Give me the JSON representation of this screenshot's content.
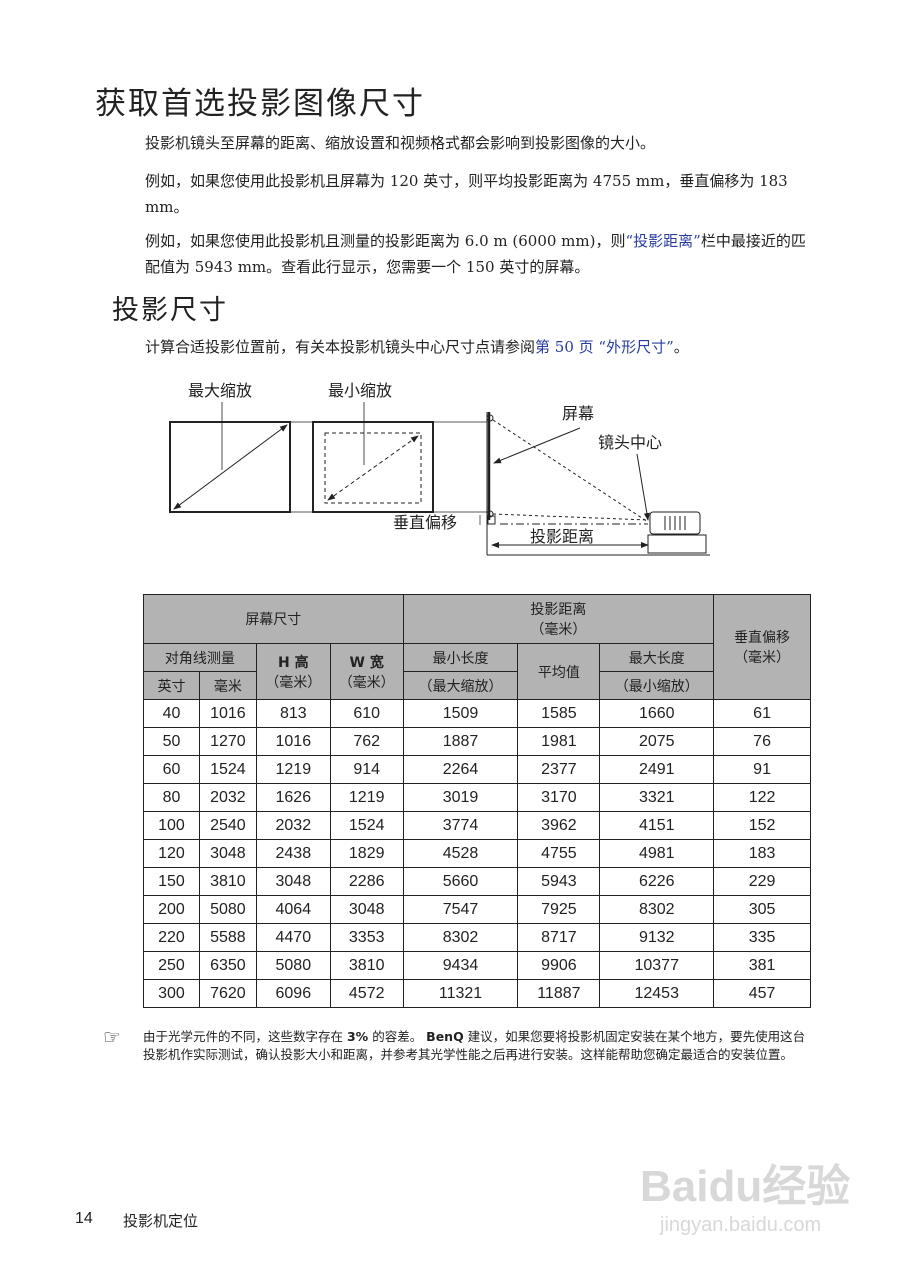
{
  "title": "获取首选投影图像尺寸",
  "paragraphs": [
    "投影机镜头至屏幕的距离、缩放设置和视频格式都会影响到投影图像的大小。",
    "例如，如果您使用此投影机且屏幕为 120 英寸，则平均投影距离为 4755 mm，垂直偏移为 183 mm。",
    "例如，如果您使用此投影机且测量的投影距离为 6.0 m (6000 mm)，则",
    "“投影距离”",
    "栏中最接近的匹配值为 5943 mm。查看此行显示，您需要一个 150 英寸的屏幕。"
  ],
  "section_title": "投影尺寸",
  "section_text": "计算合适投影位置前，有关本投影机镜头中心尺寸点请参阅",
  "section_link": "第 50 页 “外形尺寸”",
  "section_end": "。",
  "diagram": {
    "max_zoom": "最大缩放",
    "min_zoom": "最小缩放",
    "screen": "屏幕",
    "lens_center": "镜头中心",
    "vertical_offset": "垂直偏移",
    "projection_distance": "投影距离"
  },
  "table": {
    "h_screen": "屏幕尺寸",
    "h_proj": "投影距离",
    "h_proj_unit": "（毫米）",
    "h_offset": "垂直偏移",
    "h_offset_unit": "（毫米）",
    "h_diag": "对角线测量",
    "h_height": "H 高",
    "h_width": "W 宽",
    "h_mm": "（毫米）",
    "h_min": "最小长度",
    "h_avg": "平均值",
    "h_max": "最大长度",
    "h_inch": "英寸",
    "h_mm2": "毫米",
    "h_min_sub": "（最大缩放）",
    "h_max_sub": "（最小缩放）",
    "rows": [
      [
        "40",
        "1016",
        "813",
        "610",
        "1509",
        "1585",
        "1660",
        "61"
      ],
      [
        "50",
        "1270",
        "1016",
        "762",
        "1887",
        "1981",
        "2075",
        "76"
      ],
      [
        "60",
        "1524",
        "1219",
        "914",
        "2264",
        "2377",
        "2491",
        "91"
      ],
      [
        "80",
        "2032",
        "1626",
        "1219",
        "3019",
        "3170",
        "3321",
        "122"
      ],
      [
        "100",
        "2540",
        "2032",
        "1524",
        "3774",
        "3962",
        "4151",
        "152"
      ],
      [
        "120",
        "3048",
        "2438",
        "1829",
        "4528",
        "4755",
        "4981",
        "183"
      ],
      [
        "150",
        "3810",
        "3048",
        "2286",
        "5660",
        "5943",
        "6226",
        "229"
      ],
      [
        "200",
        "5080",
        "4064",
        "3048",
        "7547",
        "7925",
        "8302",
        "305"
      ],
      [
        "220",
        "5588",
        "4470",
        "3353",
        "8302",
        "8717",
        "9132",
        "335"
      ],
      [
        "250",
        "6350",
        "5080",
        "3810",
        "9434",
        "9906",
        "10377",
        "381"
      ],
      [
        "300",
        "7620",
        "6096",
        "4572",
        "11321",
        "11887",
        "12453",
        "457"
      ]
    ]
  },
  "note": {
    "a": "由于光学元件的不同，这些数字存在 ",
    "b": "3%",
    "c": " 的容差。 ",
    "d": "BenQ",
    "e": " 建议，如果您要将投影机固定安装在某个地方，要先使用这台投影机作实际测试，确认投影大小和距离，并参考其光学性能之后再进行安装。这样能帮助您确定最适合的安装位置。"
  },
  "footer": {
    "page": "14",
    "section": "投影机定位"
  },
  "watermark": {
    "brand": "Baidu经验",
    "url": "jingyan.baidu.com"
  },
  "colors": {
    "link": "#2a3ca0",
    "header_bg": "#b3b3b3"
  }
}
